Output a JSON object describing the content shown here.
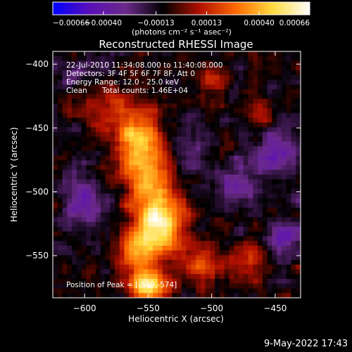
{
  "chart_data": {
    "type": "heatmap",
    "title": "Reconstructed RHESSI Image",
    "xlabel": "Heliocentric X (arcsec)",
    "ylabel": "Heliocentric Y (arcsec)",
    "xlim": [
      -625,
      -430
    ],
    "ylim": [
      -583,
      -390
    ],
    "xticks": [
      -600,
      -550,
      -500,
      -450
    ],
    "xtick_labels": [
      "−600",
      "−550",
      "−500",
      "−450"
    ],
    "yticks": [
      -400,
      -450,
      -500,
      -550
    ],
    "ytick_labels": [
      "−400",
      "−450",
      "−500",
      "−550"
    ],
    "colorbar": {
      "min": -0.00066,
      "max": 0.00066,
      "ticks": [
        -0.00066,
        -0.0004,
        -0.00013,
        0.00013,
        0.0004,
        0.00066
      ],
      "tick_labels": [
        "−0.00066",
        "−0.00040",
        "−0.00013",
        "0.00013",
        "0.00040",
        "0.00066"
      ],
      "unit_label": "(photons cm⁻² s⁻¹ asec⁻²)",
      "colormap": [
        "#0000ff",
        "#5a10b8",
        "#6b2a8a",
        "#000000",
        "#b01000",
        "#ff6a00",
        "#ffdc40",
        "#ffffff"
      ]
    },
    "annotations": {
      "time_range": "22-Jul-2010 11:34:08.000 to 11:40:08.000",
      "detectors": "Detectors: 3F 4F 5F 6F 7F 8F, Att 0",
      "energy_range": "Energy Range: 12.0 - 25.0 keV",
      "clean_label": "Clean",
      "total_counts": "Total counts: 1.46E+04",
      "peak_position": "Position of Peak = [-549,-574]"
    },
    "peak": {
      "x": -549,
      "y": -574
    },
    "bright_regions": [
      {
        "x": -560,
        "y": -455,
        "sx": 14,
        "sy": 16,
        "amp": 0.00042
      },
      {
        "x": -548,
        "y": -490,
        "sx": 16,
        "sy": 18,
        "amp": 0.0005
      },
      {
        "x": -540,
        "y": -525,
        "sx": 13,
        "sy": 13,
        "amp": 0.0006
      },
      {
        "x": -555,
        "y": -545,
        "sx": 12,
        "sy": 12,
        "amp": 0.00045
      },
      {
        "x": -549,
        "y": -574,
        "sx": 10,
        "sy": 8,
        "amp": 0.00066
      },
      {
        "x": -590,
        "y": -430,
        "sx": 14,
        "sy": 14,
        "amp": 0.0002
      },
      {
        "x": -510,
        "y": -555,
        "sx": 14,
        "sy": 10,
        "amp": 0.00028
      },
      {
        "x": -470,
        "y": -555,
        "sx": 10,
        "sy": 10,
        "amp": 0.00022
      },
      {
        "x": -460,
        "y": -440,
        "sx": 8,
        "sy": 8,
        "amp": 0.0002
      },
      {
        "x": -500,
        "y": -415,
        "sx": 10,
        "sy": 10,
        "amp": 0.00018
      },
      {
        "x": -520,
        "y": -475,
        "sx": 12,
        "sy": 20,
        "amp": -0.00016
      },
      {
        "x": -450,
        "y": -470,
        "sx": 12,
        "sy": 14,
        "amp": -0.00028
      },
      {
        "x": -480,
        "y": -495,
        "sx": 10,
        "sy": 10,
        "amp": -0.00024
      },
      {
        "x": -440,
        "y": -535,
        "sx": 10,
        "sy": 10,
        "amp": -0.0003
      },
      {
        "x": -600,
        "y": -505,
        "sx": 14,
        "sy": 14,
        "amp": -0.00022
      },
      {
        "x": -595,
        "y": -410,
        "sx": 12,
        "sy": 10,
        "amp": -0.00014
      }
    ]
  },
  "footer_timestamp": "9-May-2022 17:43"
}
